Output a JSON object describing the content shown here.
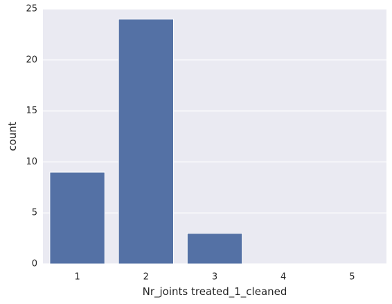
{
  "chart_data": {
    "type": "bar",
    "xlabel": "Nr_joints treated_1_cleaned",
    "ylabel": "count",
    "categories": [
      "1",
      "2",
      "3",
      "4",
      "5"
    ],
    "values": [
      9,
      24,
      3,
      0,
      0
    ],
    "ylim": [
      0,
      25
    ],
    "yticks": [
      "0",
      "5",
      "10",
      "15",
      "20",
      "25"
    ],
    "grid": true,
    "colors": {
      "bar": "#5471a5",
      "plot_background": "#eaeaf2",
      "grid": "#ffffff",
      "text": "#262626"
    }
  }
}
